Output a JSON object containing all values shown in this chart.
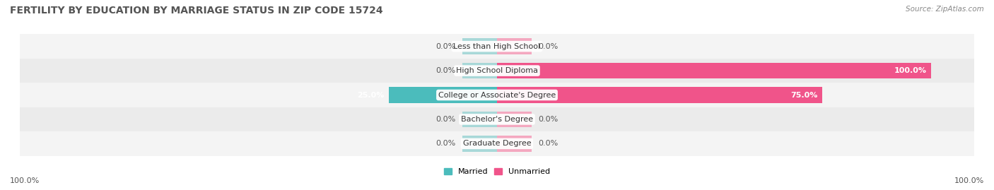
{
  "title": "FERTILITY BY EDUCATION BY MARRIAGE STATUS IN ZIP CODE 15724",
  "source": "Source: ZipAtlas.com",
  "categories": [
    "Less than High School",
    "High School Diploma",
    "College or Associate's Degree",
    "Bachelor's Degree",
    "Graduate Degree"
  ],
  "married_values": [
    0.0,
    0.0,
    25.0,
    0.0,
    0.0
  ],
  "unmarried_values": [
    0.0,
    100.0,
    75.0,
    0.0,
    0.0
  ],
  "married_color": "#4BBCBC",
  "married_color_light": "#A8D8D8",
  "unmarried_color": "#F0548A",
  "unmarried_color_light": "#F4A8C0",
  "row_bg_even": "#F4F4F4",
  "row_bg_odd": "#EBEBEB",
  "title_fontsize": 10,
  "source_fontsize": 7.5,
  "label_fontsize": 8,
  "value_fontsize": 8,
  "max_val": 100,
  "placeholder_val": 8
}
